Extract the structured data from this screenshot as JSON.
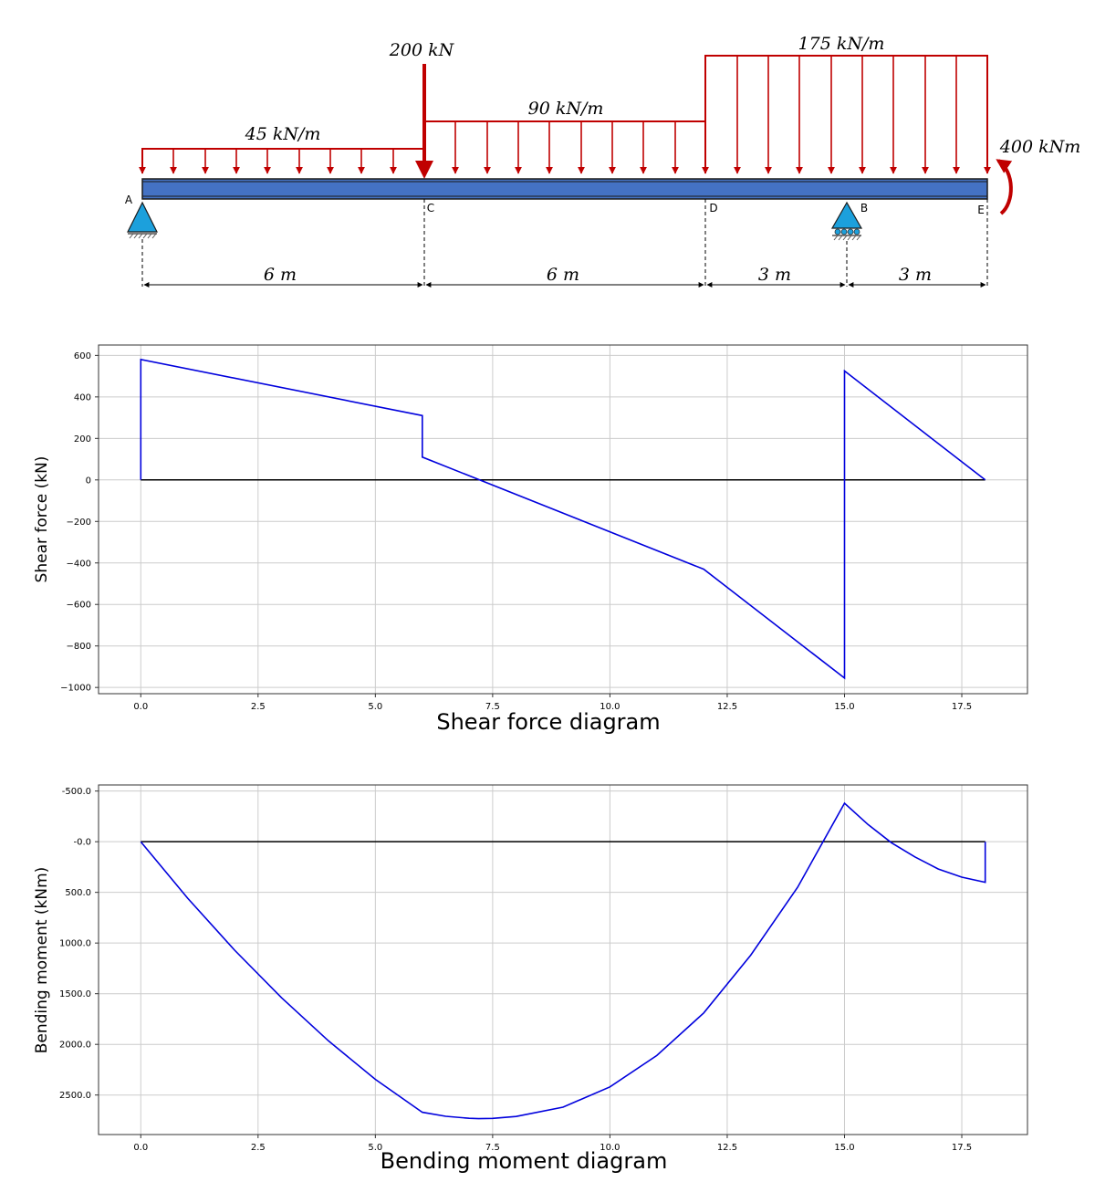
{
  "beam": {
    "points": {
      "A": "A",
      "B": "B",
      "C": "C",
      "D": "D",
      "E": "E"
    },
    "loads": {
      "udl1": "45 kN/m",
      "point": "200 kN",
      "udl2": "90 kN/m",
      "udl3": "175 kN/m",
      "moment": "400 kNm"
    },
    "spans": [
      "6 m",
      "6 m",
      "3 m",
      "3 m"
    ],
    "colors": {
      "load": "#c00000",
      "beam": "#4472c4",
      "support": "#1ca0dc"
    }
  },
  "chart_data": [
    {
      "type": "line",
      "title": "Shear force diagram",
      "xlabel": "",
      "ylabel": "Shear force (kN)",
      "xlim": [
        -0.9,
        18.9
      ],
      "ylim": [
        -1030,
        650
      ],
      "x_ticks": [
        0.0,
        2.5,
        5.0,
        7.5,
        10.0,
        12.5,
        15.0,
        17.5
      ],
      "x_tick_labels": [
        "0.0",
        "2.5",
        "5.0",
        "7.5",
        "10.0",
        "12.5",
        "15.0",
        "17.5"
      ],
      "y_ticks": [
        600,
        400,
        200,
        0,
        -200,
        -400,
        -600,
        -800,
        -1000
      ],
      "y_tick_labels": [
        "600",
        "400",
        "200",
        "0",
        "−200",
        "−400",
        "−600",
        "−800",
        "−1000"
      ],
      "grid": true,
      "series": [
        {
          "color": "#0000dd",
          "x": [
            0,
            0,
            6,
            6,
            12,
            15,
            15,
            18
          ],
          "y": [
            0,
            580,
            310,
            110,
            -430,
            -955,
            525,
            0
          ]
        }
      ],
      "baseline": 0
    },
    {
      "type": "line",
      "title": "Bending moment diagram",
      "xlabel": "",
      "ylabel": "Bending moment (kNm)",
      "xlim": [
        -0.9,
        18.9
      ],
      "ylim": [
        -560,
        2890
      ],
      "y_inverted": true,
      "x_ticks": [
        0.0,
        2.5,
        5.0,
        7.5,
        10.0,
        12.5,
        15.0,
        17.5
      ],
      "x_tick_labels": [
        "0.0",
        "2.5",
        "5.0",
        "7.5",
        "10.0",
        "12.5",
        "15.0",
        "17.5"
      ],
      "y_ticks": [
        -500,
        0,
        500,
        1000,
        1500,
        2000,
        2500
      ],
      "y_tick_labels": [
        "-500.0",
        "-0.0",
        "500.0",
        "1000.0",
        "1500.0",
        "2000.0",
        "2500.0"
      ],
      "grid": true,
      "series": [
        {
          "color": "#0000dd",
          "x": [
            0,
            1,
            2,
            3,
            4,
            5,
            6,
            6.5,
            7,
            7.2,
            7.5,
            8,
            9,
            10,
            11,
            12,
            13,
            14,
            15,
            15.5,
            16,
            16.5,
            17,
            17.5,
            18,
            18
          ],
          "y": [
            0,
            558,
            1070,
            1540,
            1965,
            2345,
            2670,
            2710,
            2730,
            2733,
            2731,
            2712,
            2620,
            2420,
            2110,
            1690,
            1120,
            450,
            -380,
            -170,
            10,
            150,
            270,
            350,
            400,
            0
          ]
        }
      ],
      "baseline": 0
    }
  ]
}
